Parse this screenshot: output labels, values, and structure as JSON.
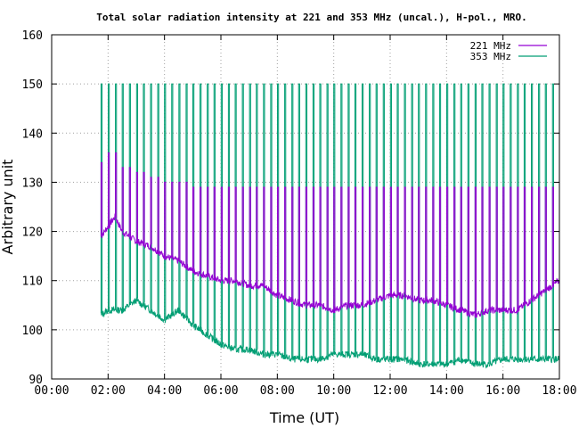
{
  "chart_data": {
    "type": "line",
    "title": "Total solar radiation intensity at 221 and 353 MHz (uncal.), H-pol., MRO.",
    "xlabel": "Time (UT)",
    "ylabel": "Arbitrary unit",
    "xlim": [
      0,
      18
    ],
    "ylim": [
      90,
      160
    ],
    "x_ticks": [
      0,
      2,
      4,
      6,
      8,
      10,
      12,
      14,
      16,
      18
    ],
    "x_tick_labels": [
      "00:00",
      "02:00",
      "04:00",
      "06:00",
      "08:00",
      "10:00",
      "12:00",
      "14:00",
      "16:00",
      "18:00"
    ],
    "y_ticks": [
      90,
      100,
      110,
      120,
      130,
      140,
      150,
      160
    ],
    "y_tick_labels": [
      "90",
      "100",
      "110",
      "120",
      "130",
      "140",
      "150",
      "160"
    ],
    "grid": true,
    "legend_position": "top-right",
    "series": [
      {
        "name": "221 MHz",
        "color": "#9400d3",
        "x_start": 1.75,
        "x_end": 18.0,
        "x": [
          1.75,
          2.0,
          2.25,
          2.5,
          3.0,
          3.5,
          4.0,
          4.5,
          5.0,
          5.5,
          6.0,
          6.5,
          7.0,
          7.5,
          8.0,
          8.5,
          9.0,
          9.5,
          10.0,
          10.5,
          11.0,
          11.5,
          12.0,
          12.5,
          13.0,
          13.5,
          14.0,
          14.5,
          15.0,
          15.5,
          16.0,
          16.5,
          17.0,
          17.5,
          18.0
        ],
        "y": [
          119,
          121,
          123,
          120,
          118,
          117,
          115,
          114,
          112,
          111,
          110,
          110,
          109,
          109,
          107,
          106,
          105,
          105,
          104,
          105,
          105,
          106,
          107,
          107,
          106,
          106,
          105,
          104,
          103,
          104,
          104,
          104,
          106,
          108,
          110
        ],
        "calibration_spikes_to": [
          134,
          136,
          133,
          132,
          131,
          130,
          130,
          129,
          129,
          129,
          129,
          129,
          129,
          129,
          129,
          129,
          129,
          129,
          129,
          129,
          129,
          129,
          129,
          129,
          129,
          129,
          129,
          129,
          129,
          129,
          129,
          129,
          129,
          129,
          129
        ]
      },
      {
        "name": "353 MHz",
        "color": "#009e73",
        "x_start": 1.75,
        "x_end": 18.0,
        "x": [
          1.75,
          2.0,
          2.5,
          3.0,
          3.5,
          4.0,
          4.5,
          5.0,
          5.5,
          6.0,
          6.5,
          7.0,
          7.5,
          8.0,
          8.5,
          9.0,
          9.5,
          10.0,
          10.5,
          11.0,
          11.5,
          12.0,
          12.5,
          13.0,
          13.5,
          14.0,
          14.5,
          15.0,
          15.5,
          16.0,
          16.5,
          17.0,
          17.5,
          18.0
        ],
        "y": [
          103,
          104,
          104,
          106,
          104,
          102,
          104,
          101,
          99,
          97,
          96,
          96,
          95,
          95,
          94,
          94,
          94,
          95,
          95,
          95,
          94,
          94,
          94,
          93,
          93,
          93,
          94,
          93,
          93,
          94,
          94,
          94,
          94,
          94
        ],
        "calibration_spikes_to": 150
      }
    ],
    "calibration_interval_hours": 0.25
  }
}
